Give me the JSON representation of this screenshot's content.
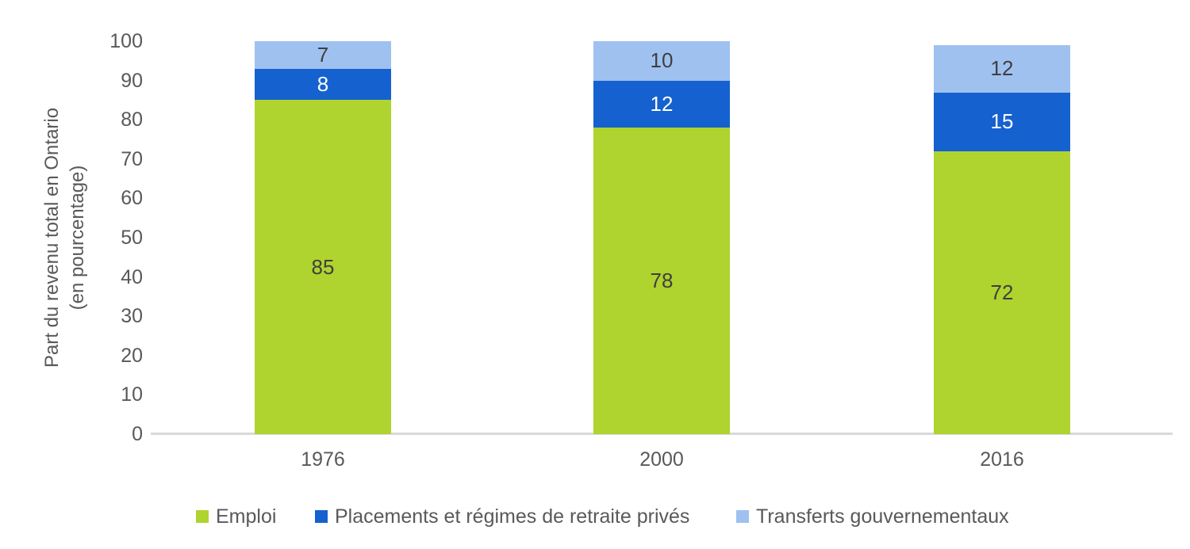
{
  "chart_data": {
    "type": "bar",
    "stacked": true,
    "title": "",
    "categories": [
      "1976",
      "2000",
      "2016"
    ],
    "series": [
      {
        "name": "Emploi",
        "values": [
          85,
          78,
          72
        ],
        "color": "#AFD32F",
        "label_color": "#3F3F3F"
      },
      {
        "name": "Placements et régimes de retraite privés",
        "values": [
          8,
          12,
          15
        ],
        "color": "#1561D0",
        "label_color": "#FFFFFF"
      },
      {
        "name": "Transferts gouvernementaux",
        "values": [
          7,
          10,
          12
        ],
        "color": "#9EC1F0",
        "label_color": "#3F3F3F"
      }
    ],
    "ylabel": "Part du revenu total en Ontario (en pourcentage)",
    "ylabel_lines": [
      "Part du revenu total en Ontario",
      "(en pourcentage)"
    ],
    "xlabel": "",
    "ylim": [
      0,
      100
    ],
    "y_ticks": [
      0,
      10,
      20,
      30,
      40,
      50,
      60,
      70,
      80,
      90,
      100
    ],
    "grid": false,
    "legend_position": "bottom"
  },
  "colors": {
    "axis_text": "#595959",
    "baseline": "#D9D9D9",
    "background": "#FFFFFF"
  }
}
